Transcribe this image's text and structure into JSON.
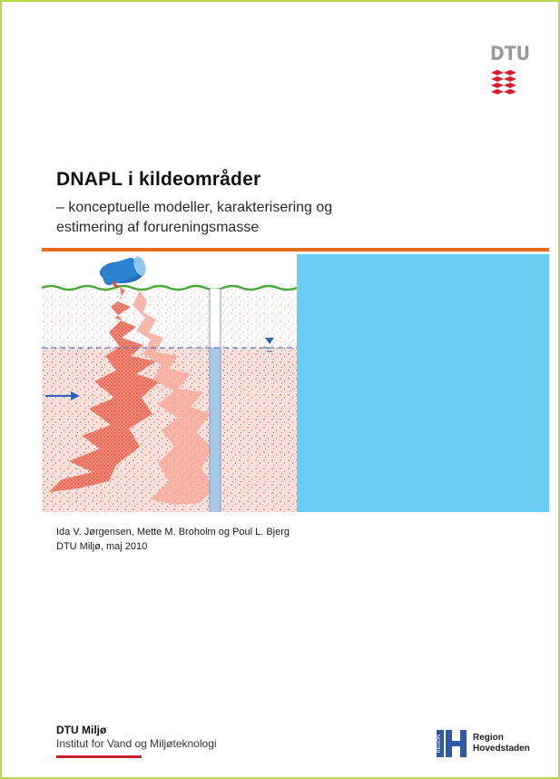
{
  "logo": {
    "text": "DTU",
    "color": "#9a9a9a",
    "waves_color": "#d81e2c"
  },
  "title": "DNAPL i kildeområder",
  "subtitle": "– konceptuelle modeller, karakterisering og estimering af forureningsmasse",
  "accent_color": "#e8691c",
  "panel_color": "#6acdf3",
  "authors": "Ida V. Jørgensen, Mette M. Broholm og Poul L. Bjerg",
  "affiliation_date": "DTU Miljø, maj 2010",
  "department": {
    "name": "DTU Miljø",
    "institute": "Institut for Vand og Miljøteknologi",
    "bar_color": "#c8202f"
  },
  "region_logo": {
    "side_text": "REGION",
    "line1": "Region",
    "line2": "Hovedstaden",
    "color": "#2d5aa8"
  }
}
